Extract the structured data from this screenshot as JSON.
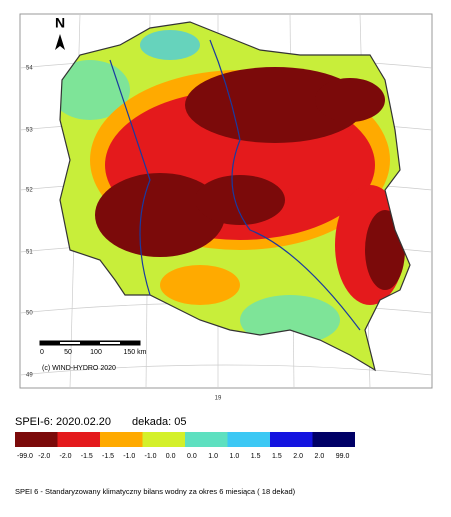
{
  "map": {
    "north": "N",
    "lat_labels": [
      "54",
      "53",
      "52",
      "51",
      "50",
      "49"
    ],
    "lon_label": "19",
    "scale_labels": [
      "0",
      "50",
      "100",
      "150 km"
    ],
    "copyright": "(c) WIND-HYDRO 2020",
    "index_label": "SPEI-6:  2020.02.20",
    "dekada_label": "dekada:  05",
    "legend": [
      {
        "color": "#7b0a0a",
        "from": "-99.0",
        "to": "-2.0"
      },
      {
        "color": "#e41a1c",
        "from": "-2.0",
        "to": "-1.5"
      },
      {
        "color": "#ffaa00",
        "from": "-1.5",
        "to": "-1.0"
      },
      {
        "color": "#d4f02a",
        "from": "-1.0",
        "to": "0.0"
      },
      {
        "color": "#5ee0c0",
        "from": "0.0",
        "to": "1.0"
      },
      {
        "color": "#3cc8f4",
        "from": "1.0",
        "to": "1.5"
      },
      {
        "color": "#1414e0",
        "from": "1.5",
        "to": "2.0"
      },
      {
        "color": "#000066",
        "from": "2.0",
        "to": "99.0"
      }
    ],
    "caption": "SPEI 6 - Standaryzowany klimatyczny bilans wodny za okres 6  miesiąca  ( 18 dekad)"
  }
}
